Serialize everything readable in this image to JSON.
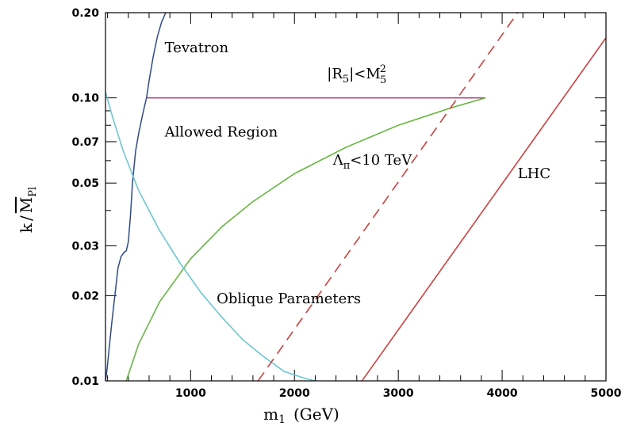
{
  "chart_data": {
    "type": "line",
    "xlabel": "m",
    "xlabel_sub": "1",
    "xlabel_unit": "(GeV)",
    "ylabel_k": "k",
    "ylabel_slash": "/",
    "ylabel_m": "M",
    "ylabel_sub": "Pl",
    "xlim": [
      180,
      5000
    ],
    "ylim": [
      0.01,
      0.2
    ],
    "yscale": "log",
    "x_ticks": [
      {
        "value": 1000,
        "label": "1000"
      },
      {
        "value": 2000,
        "label": "2000"
      },
      {
        "value": 3000,
        "label": "3000"
      },
      {
        "value": 4000,
        "label": "4000"
      },
      {
        "value": 5000,
        "label": "5000"
      }
    ],
    "y_ticks": [
      {
        "value": 0.01,
        "label": "0.01"
      },
      {
        "value": 0.02,
        "label": "0.02"
      },
      {
        "value": 0.03,
        "label": "0.03"
      },
      {
        "value": 0.05,
        "label": "0.05"
      },
      {
        "value": 0.07,
        "label": "0.07"
      },
      {
        "value": 0.1,
        "label": "0.10"
      },
      {
        "value": 0.2,
        "label": "0.20"
      }
    ],
    "series": [
      {
        "key": "tevatron",
        "color": "#2a4a9c",
        "dash": "",
        "x": [
          180,
          195,
          215,
          240,
          270,
          300,
          330,
          360,
          380,
          400,
          420,
          440,
          470,
          500,
          540,
          575,
          600,
          640,
          680,
          720,
          760
        ],
        "y": [
          0.01,
          0.011,
          0.013,
          0.016,
          0.02,
          0.025,
          0.0275,
          0.0285,
          0.0288,
          0.031,
          0.038,
          0.05,
          0.065,
          0.075,
          0.088,
          0.1,
          0.115,
          0.14,
          0.165,
          0.185,
          0.2
        ]
      },
      {
        "key": "bound_r5",
        "color": "#b0307c",
        "dash": "",
        "x": [
          580,
          3840
        ],
        "y": [
          0.1,
          0.1
        ]
      },
      {
        "key": "lambda_pi",
        "color": "#5cb832",
        "dash": "",
        "x": [
          380,
          500,
          700,
          1000,
          1300,
          1600,
          2000,
          2500,
          3000,
          3500,
          3840
        ],
        "y": [
          0.01,
          0.0135,
          0.019,
          0.027,
          0.035,
          0.043,
          0.054,
          0.067,
          0.08,
          0.092,
          0.1
        ]
      },
      {
        "key": "oblique",
        "color": "#5ec8d4",
        "dash": "",
        "x": [
          180,
          250,
          350,
          500,
          700,
          900,
          1100,
          1300,
          1500,
          1700,
          1900,
          2100,
          2200
        ],
        "y": [
          0.105,
          0.085,
          0.065,
          0.047,
          0.034,
          0.026,
          0.0205,
          0.0168,
          0.014,
          0.0122,
          0.0108,
          0.0102,
          0.01
        ]
      },
      {
        "key": "dashed_red",
        "color": "#e03030",
        "dash": "13,8",
        "x": [
          1650,
          4150
        ],
        "y": [
          0.01,
          0.2
        ]
      },
      {
        "key": "lhc",
        "color": "#e03030",
        "dash": "",
        "x": [
          2650,
          5000
        ],
        "y": [
          0.01,
          0.163
        ]
      }
    ],
    "annotations": [
      {
        "key": "tevatron",
        "text": "Tevatron",
        "x": 750,
        "y": 0.145
      },
      {
        "key": "allowed",
        "text": "Allowed Region",
        "x": 750,
        "y": 0.073
      },
      {
        "key": "lhc",
        "text": "LHC",
        "x": 4150,
        "y": 0.052
      },
      {
        "key": "oblique",
        "text": "Oblique Parameters",
        "x": 1250,
        "y": 0.0188
      }
    ],
    "r5_label": {
      "bar_open": "|R",
      "sub5a": "5",
      "bar_close": "|<M",
      "sub5b": "5",
      "sup2": "2",
      "x": 2600,
      "y": 0.117
    },
    "lambda_label": {
      "symbol": "Λ",
      "sub": "π",
      "rest": "<10 TeV",
      "x": 2750,
      "y": 0.058
    }
  }
}
